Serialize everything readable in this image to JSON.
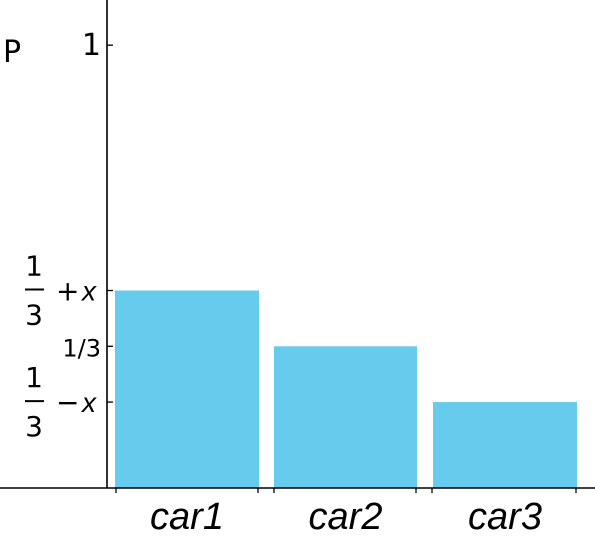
{
  "chart_data": {
    "type": "bar",
    "categories": [
      "car1",
      "car2",
      "car3"
    ],
    "values": [
      0.4568,
      0.3333,
      0.2098
    ],
    "ylabel": "P",
    "ylim": [
      -0.1,
      1.1
    ],
    "yticks": [
      {
        "value": 1,
        "label": "1"
      },
      {
        "value": 0.4568,
        "label": "1/3 + x",
        "kind": "fraction",
        "num": "1",
        "den": "3",
        "op": "+",
        "var": "x"
      },
      {
        "value": 0.3333,
        "label": "1/3"
      },
      {
        "value": 0.2098,
        "label": "1/3 − x",
        "kind": "fraction",
        "num": "1",
        "den": "3",
        "op": "−",
        "var": "x"
      }
    ],
    "colors": {
      "bar": "#66CBEC",
      "axis": "#000000"
    },
    "grid": false,
    "legend": "none"
  }
}
